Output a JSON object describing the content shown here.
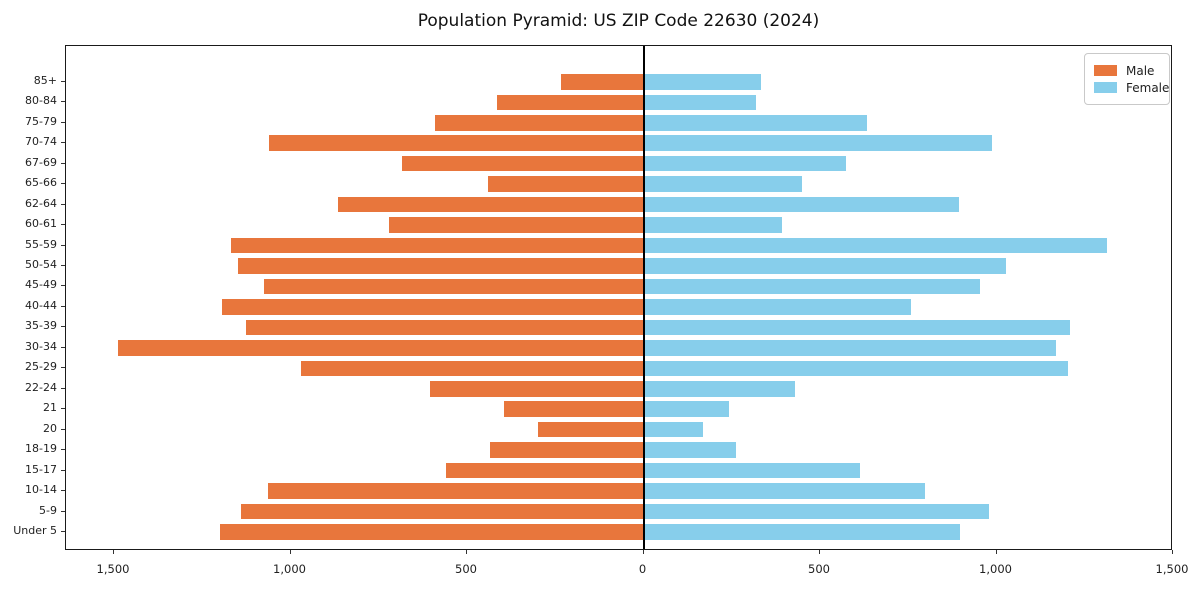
{
  "title": "Population Pyramid: US ZIP Code 22630 (2024)",
  "legend": {
    "male_label": "Male",
    "female_label": "Female"
  },
  "colors": {
    "male": "#E8763C",
    "female": "#87CEEB",
    "axis": "#1a1a1a",
    "zero_line": "#000000"
  },
  "x_axis": {
    "tick_values": [
      -1500,
      -1000,
      -500,
      0,
      500,
      1000,
      1500
    ],
    "tick_labels": [
      "1,500",
      "1,000",
      "500",
      "0",
      "500",
      "1,000",
      "1,500"
    ]
  },
  "chart_data": {
    "type": "bar",
    "subtype": "population-pyramid-horizontal",
    "title": "Population Pyramid: US ZIP Code 22630 (2024)",
    "categories_top_to_bottom": [
      "85+",
      "80-84",
      "75-79",
      "70-74",
      "67-69",
      "65-66",
      "62-64",
      "60-61",
      "55-59",
      "50-54",
      "45-49",
      "40-44",
      "35-39",
      "30-34",
      "25-29",
      "22-24",
      "21",
      "20",
      "18-19",
      "15-17",
      "10-14",
      "5-9",
      "Under 5"
    ],
    "series": [
      {
        "name": "Male",
        "side": "left",
        "color": "#E8763C",
        "values": [
          235,
          415,
          590,
          1060,
          685,
          440,
          865,
          720,
          1170,
          1150,
          1075,
          1195,
          1125,
          1490,
          970,
          605,
          395,
          300,
          435,
          560,
          1065,
          1140,
          1200
        ]
      },
      {
        "name": "Female",
        "side": "right",
        "color": "#87CEEB",
        "values": [
          330,
          315,
          630,
          985,
          570,
          445,
          890,
          390,
          1310,
          1025,
          950,
          755,
          1205,
          1165,
          1200,
          425,
          240,
          165,
          260,
          610,
          795,
          975,
          895
        ]
      }
    ],
    "xlim": [
      -1636,
      1500
    ],
    "grid": false,
    "legend_position": "upper right",
    "background": "#ffffff"
  }
}
